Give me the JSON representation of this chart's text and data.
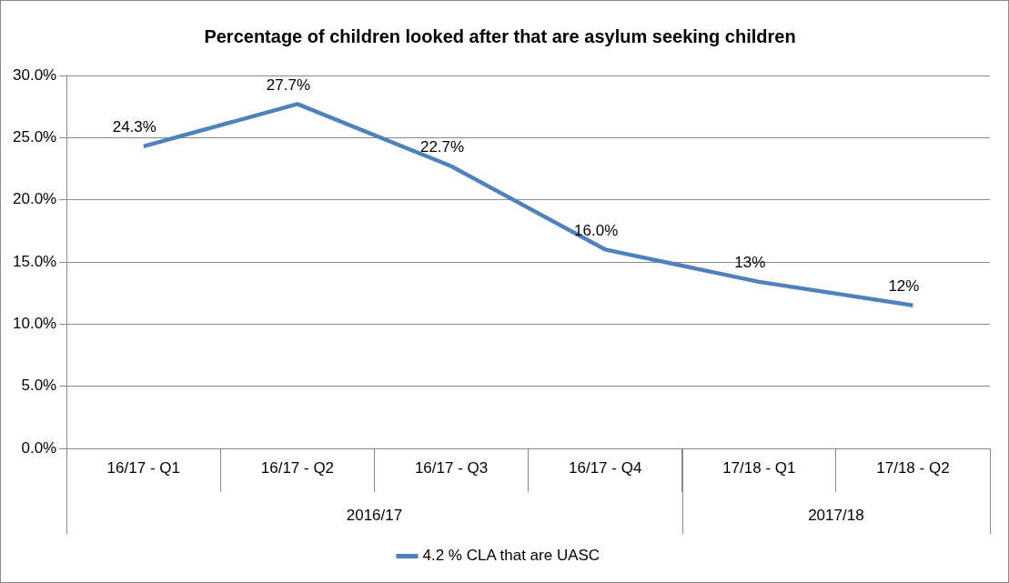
{
  "chart_data": {
    "type": "line",
    "title": "Percentage of children looked after that are asylum seeking children",
    "categories": [
      "16/17 - Q1",
      "16/17 - Q2",
      "16/17 - Q3",
      "16/17 - Q4",
      "17/18 - Q1",
      "17/18 - Q2"
    ],
    "series": [
      {
        "name": "4.2 % CLA that are UASC",
        "color": "#4f81bd",
        "values": [
          24.3,
          27.7,
          22.7,
          16.0,
          13.4,
          11.5
        ],
        "value_labels": [
          "24.3%",
          "27.7%",
          "22.7%",
          "16.0%",
          "13%",
          "12%"
        ]
      }
    ],
    "ylim": [
      0,
      30
    ],
    "yticks": [
      {
        "value": 0,
        "label": "0.0%"
      },
      {
        "value": 5,
        "label": "5.0%"
      },
      {
        "value": 10,
        "label": "10.0%"
      },
      {
        "value": 15,
        "label": "15.0%"
      },
      {
        "value": 20,
        "label": "20.0%"
      },
      {
        "value": 25,
        "label": "25.0%"
      },
      {
        "value": 30,
        "label": "30.0%"
      }
    ],
    "annotations": [
      "2016/17",
      "2017/18"
    ],
    "grid": "y",
    "legend": "bottom",
    "marker": "none",
    "line_style": "solid"
  }
}
